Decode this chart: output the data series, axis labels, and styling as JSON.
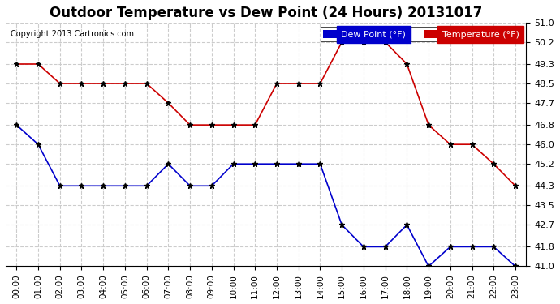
{
  "title": "Outdoor Temperature vs Dew Point (24 Hours) 20131017",
  "copyright": "Copyright 2013 Cartronics.com",
  "xlabel": "",
  "ylabel_right": "",
  "background_color": "#ffffff",
  "plot_background": "#ffffff",
  "grid_color": "#cccccc",
  "hours": [
    "00:00",
    "01:00",
    "02:00",
    "03:00",
    "04:00",
    "05:00",
    "06:00",
    "07:00",
    "08:00",
    "09:00",
    "10:00",
    "11:00",
    "12:00",
    "13:00",
    "14:00",
    "15:00",
    "16:00",
    "17:00",
    "18:00",
    "19:00",
    "20:00",
    "21:00",
    "22:00",
    "23:00"
  ],
  "temperature": [
    49.3,
    49.3,
    48.5,
    48.5,
    48.5,
    48.5,
    48.5,
    47.7,
    46.8,
    46.8,
    46.8,
    46.8,
    48.5,
    48.5,
    48.5,
    50.2,
    50.2,
    50.2,
    49.3,
    46.8,
    46.0,
    46.0,
    45.2,
    44.3
  ],
  "dew_point": [
    46.8,
    46.0,
    44.3,
    44.3,
    44.3,
    44.3,
    44.3,
    45.2,
    44.3,
    44.3,
    45.2,
    45.2,
    45.2,
    45.2,
    45.2,
    42.7,
    41.8,
    41.8,
    42.7,
    41.0,
    41.8,
    41.8,
    41.8,
    41.0
  ],
  "temp_color": "#cc0000",
  "dew_color": "#0000cc",
  "ylim_min": 41.0,
  "ylim_max": 51.0,
  "yticks": [
    41.0,
    41.8,
    42.7,
    43.5,
    44.3,
    45.2,
    46.0,
    46.8,
    47.7,
    48.5,
    49.3,
    50.2,
    51.0
  ],
  "legend_dew_bg": "#0000cc",
  "legend_temp_bg": "#cc0000",
  "legend_dew_text": "Dew Point (°F)",
  "legend_temp_text": "Temperature (°F)"
}
